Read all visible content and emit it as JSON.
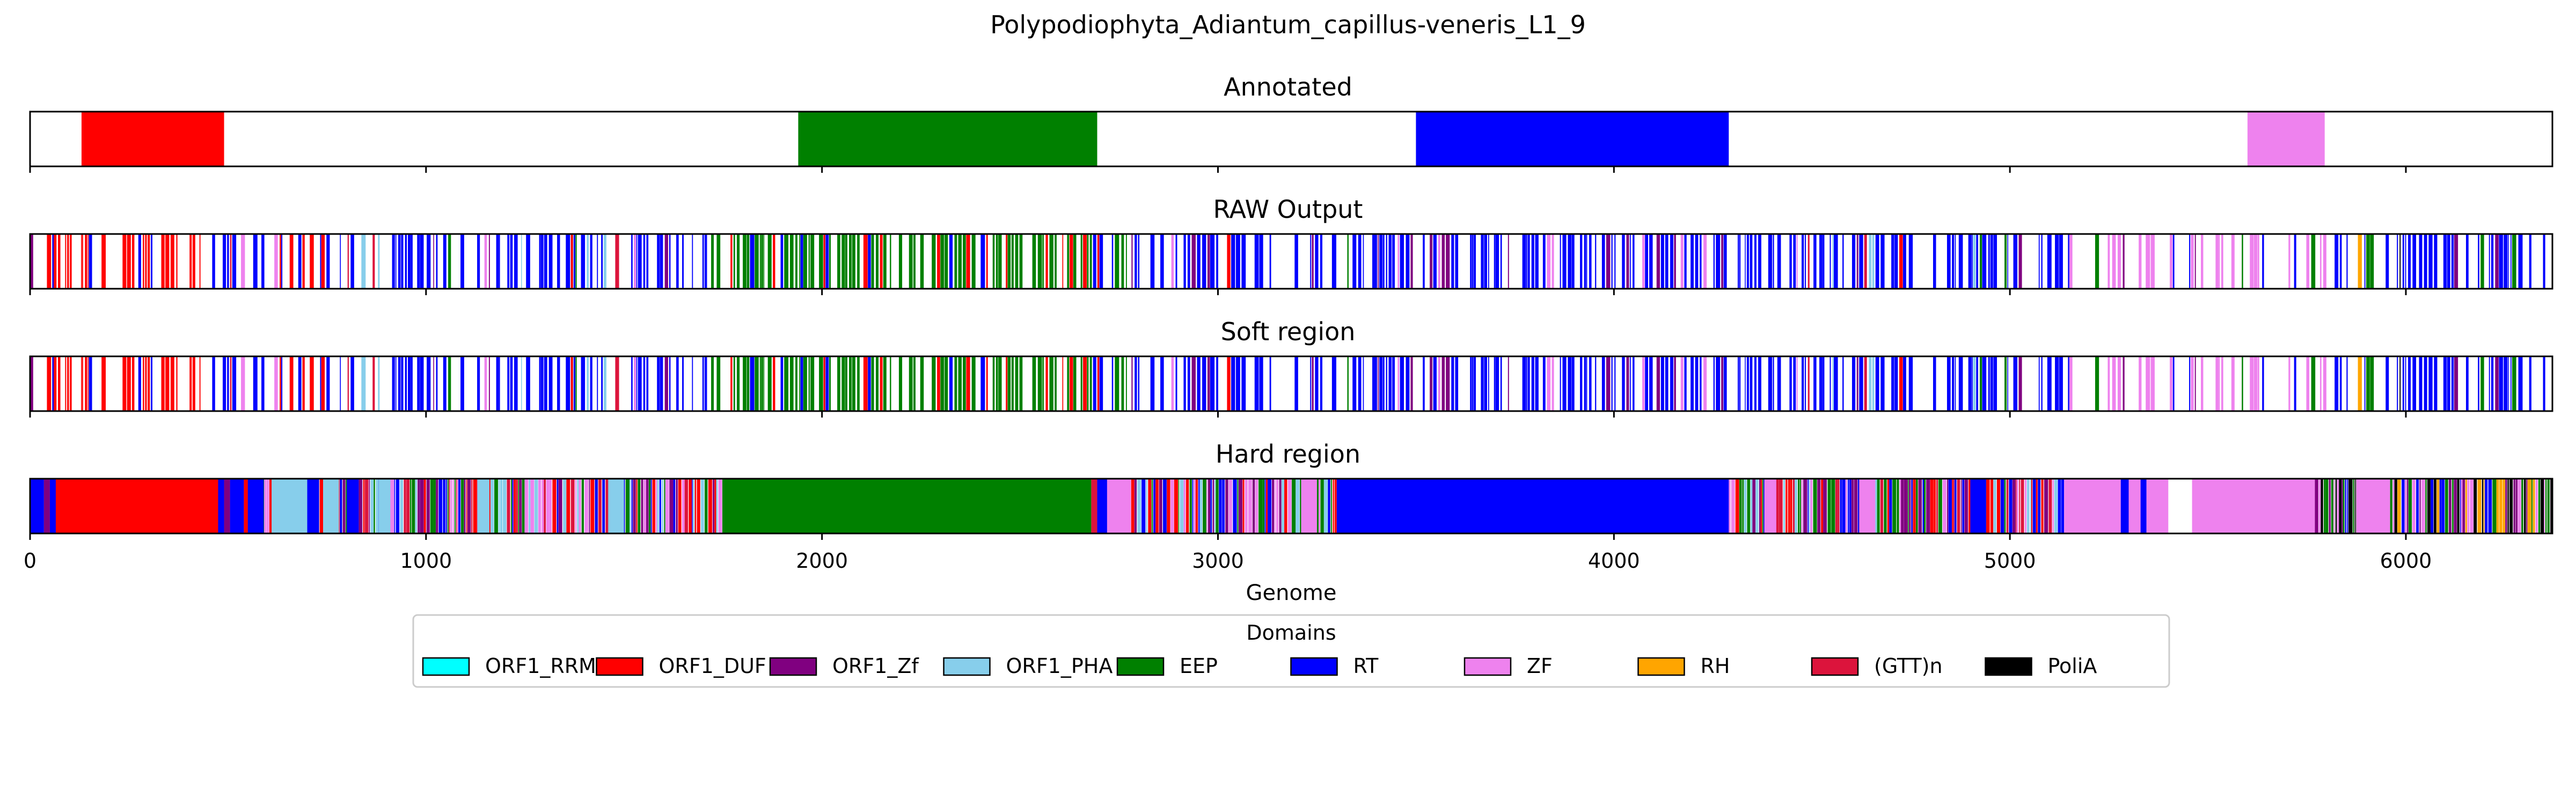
{
  "chart_data": {
    "type": "bar",
    "title": "Polypodiophyta_Adiantum_capillus-veneris_L1_9",
    "xlabel": "Genome",
    "xlim": [
      0,
      6370
    ],
    "xticks": [
      0,
      1000,
      2000,
      3000,
      4000,
      5000,
      6000
    ],
    "legend": {
      "title": "Domains",
      "placement": "bottom-center",
      "entries": [
        {
          "name": "ORF1_RRM",
          "color": "#00ffff"
        },
        {
          "name": "ORF1_DUF",
          "color": "#ff0000"
        },
        {
          "name": "ORF1_Zf",
          "color": "#800080"
        },
        {
          "name": "ORF1_PHA",
          "color": "#87ceeb"
        },
        {
          "name": "EEP",
          "color": "#008000"
        },
        {
          "name": "RT",
          "color": "#0000ff"
        },
        {
          "name": "ZF",
          "color": "#ee82ee"
        },
        {
          "name": "RH",
          "color": "#ffa500"
        },
        {
          "name": "(GTT)n",
          "color": "#dc143c"
        },
        {
          "name": "PoliA",
          "color": "#000000"
        }
      ]
    },
    "panels": [
      {
        "title": "Annotated",
        "segments": [
          {
            "domain": "ORF1_DUF",
            "start": 130,
            "end": 490
          },
          {
            "domain": "EEP",
            "start": 1940,
            "end": 2695
          },
          {
            "domain": "RT",
            "start": 3500,
            "end": 4290
          },
          {
            "domain": "ZF",
            "start": 5600,
            "end": 5795
          }
        ]
      },
      {
        "title": "RAW Output",
        "style": "stripes",
        "regions": [
          {
            "start": 0,
            "end": 60,
            "dominant": "RT",
            "others": [
              "ORF1_Zf",
              "ORF1_DUF"
            ],
            "fill": 0.6
          },
          {
            "start": 60,
            "end": 460,
            "dominant": "ORF1_DUF",
            "others": [
              "RT",
              "ORF1_Zf"
            ],
            "fill": 0.55
          },
          {
            "start": 460,
            "end": 1720,
            "dominant": "RT",
            "others": [
              "ORF1_Zf",
              "ORF1_PHA",
              "ORF1_DUF",
              "EEP",
              "ZF",
              "(GTT)n"
            ],
            "fill": 0.6
          },
          {
            "start": 1720,
            "end": 2770,
            "dominant": "EEP",
            "others": [
              "RT",
              "ORF1_DUF"
            ],
            "fill": 0.7
          },
          {
            "start": 2770,
            "end": 3330,
            "dominant": "RT",
            "others": [
              "ZF",
              "EEP",
              "ORF1_Zf",
              "ORF1_DUF"
            ],
            "fill": 0.6
          },
          {
            "start": 3330,
            "end": 4280,
            "dominant": "RT",
            "others": [
              "ORF1_Zf",
              "ZF"
            ],
            "fill": 0.65
          },
          {
            "start": 4280,
            "end": 5150,
            "dominant": "RT",
            "others": [
              "ZF",
              "EEP",
              "ORF1_Zf",
              "ORF1_DUF",
              "(GTT)n",
              "ORF1_PHA"
            ],
            "fill": 0.6
          },
          {
            "start": 5150,
            "end": 5820,
            "dominant": "ZF",
            "others": [
              "RT",
              "ORF1_Zf",
              "EEP"
            ],
            "fill": 0.5
          },
          {
            "start": 5820,
            "end": 6370,
            "dominant": "RT",
            "others": [
              "ZF",
              "EEP",
              "ORF1_Zf",
              "RH",
              "PoliA"
            ],
            "fill": 0.65
          }
        ]
      },
      {
        "title": "Soft region",
        "style": "stripes",
        "regions": [
          {
            "start": 0,
            "end": 60,
            "dominant": "RT",
            "others": [
              "ORF1_Zf",
              "ORF1_DUF"
            ],
            "fill": 0.6
          },
          {
            "start": 60,
            "end": 460,
            "dominant": "ORF1_DUF",
            "others": [
              "RT",
              "ORF1_Zf"
            ],
            "fill": 0.55
          },
          {
            "start": 460,
            "end": 1720,
            "dominant": "RT",
            "others": [
              "ORF1_Zf",
              "ORF1_PHA",
              "ORF1_DUF",
              "EEP",
              "ZF",
              "(GTT)n"
            ],
            "fill": 0.6
          },
          {
            "start": 1720,
            "end": 2770,
            "dominant": "EEP",
            "others": [
              "RT",
              "ORF1_DUF"
            ],
            "fill": 0.7
          },
          {
            "start": 2770,
            "end": 3330,
            "dominant": "RT",
            "others": [
              "ZF",
              "EEP",
              "ORF1_Zf",
              "ORF1_DUF"
            ],
            "fill": 0.6
          },
          {
            "start": 3330,
            "end": 4280,
            "dominant": "RT",
            "others": [
              "ORF1_Zf",
              "ZF"
            ],
            "fill": 0.65
          },
          {
            "start": 4280,
            "end": 5150,
            "dominant": "RT",
            "others": [
              "ZF",
              "EEP",
              "ORF1_Zf",
              "ORF1_DUF",
              "(GTT)n",
              "ORF1_PHA"
            ],
            "fill": 0.6
          },
          {
            "start": 5150,
            "end": 5820,
            "dominant": "ZF",
            "others": [
              "RT",
              "ORF1_Zf",
              "EEP"
            ],
            "fill": 0.5
          },
          {
            "start": 5820,
            "end": 6370,
            "dominant": "RT",
            "others": [
              "ZF",
              "EEP",
              "ORF1_Zf",
              "RH",
              "PoliA"
            ],
            "fill": 0.65
          }
        ]
      },
      {
        "title": "Hard region",
        "style": "blocks",
        "segments": [
          {
            "domain": "RT",
            "start": 0,
            "end": 35
          },
          {
            "domain": "ORF1_Zf",
            "start": 35,
            "end": 50
          },
          {
            "domain": "RT",
            "start": 50,
            "end": 65
          },
          {
            "domain": "ORF1_DUF",
            "start": 65,
            "end": 475
          },
          {
            "domain": "RT",
            "start": 475,
            "end": 490
          },
          {
            "domain": "ORF1_Zf",
            "start": 490,
            "end": 505
          },
          {
            "domain": "RT",
            "start": 505,
            "end": 540
          },
          {
            "domain": "ORF1_DUF",
            "start": 540,
            "end": 550
          },
          {
            "domain": "RT",
            "start": 550,
            "end": 590
          },
          {
            "domain": "ORF1_PHA",
            "start": 610,
            "end": 700
          },
          {
            "domain": "RT",
            "start": 700,
            "end": 730
          },
          {
            "domain": "ORF1_PHA",
            "start": 740,
            "end": 780
          },
          {
            "domain": "RT",
            "start": 800,
            "end": 830
          },
          {
            "domain": "ORF1_PHA",
            "start": 880,
            "end": 910
          },
          {
            "domain": "ORF1_PHA",
            "start": 1130,
            "end": 1160
          },
          {
            "domain": "ORF1_PHA",
            "start": 1460,
            "end": 1500
          },
          {
            "domain": "EEP",
            "start": 1750,
            "end": 2680
          },
          {
            "domain": "(GTT)n",
            "start": 2680,
            "end": 2695
          },
          {
            "domain": "RT",
            "start": 2695,
            "end": 2720
          },
          {
            "domain": "ZF",
            "start": 2720,
            "end": 2780
          },
          {
            "domain": "ZF",
            "start": 3210,
            "end": 3250
          },
          {
            "domain": "RT",
            "start": 3300,
            "end": 4290
          },
          {
            "domain": "ZF",
            "start": 4380,
            "end": 4410
          },
          {
            "domain": "ZF",
            "start": 4620,
            "end": 4660
          },
          {
            "domain": "RT",
            "start": 4900,
            "end": 4940
          },
          {
            "domain": "ZF",
            "start": 5140,
            "end": 5280
          },
          {
            "domain": "RT",
            "start": 5280,
            "end": 5300
          },
          {
            "domain": "ZF",
            "start": 5300,
            "end": 5330
          },
          {
            "domain": "RT",
            "start": 5330,
            "end": 5345
          },
          {
            "domain": "ZF",
            "start": 5345,
            "end": 5400
          },
          {
            "domain": "ZF",
            "start": 5460,
            "end": 5770
          },
          {
            "domain": "ZF",
            "start": 5875,
            "end": 5960
          }
        ],
        "noise_regions": [
          {
            "start": 0,
            "end": 1750,
            "colors": [
              "RT",
              "ORF1_Zf",
              "ORF1_PHA",
              "EEP",
              "ZF",
              "ORF1_DUF",
              "(GTT)n"
            ]
          },
          {
            "start": 2700,
            "end": 3300,
            "colors": [
              "RT",
              "ZF",
              "EEP",
              "ORF1_Zf",
              "ORF1_DUF",
              "ORF1_PHA"
            ]
          },
          {
            "start": 4290,
            "end": 5140,
            "colors": [
              "RT",
              "ZF",
              "EEP",
              "ORF1_Zf",
              "ORF1_DUF",
              "(GTT)n",
              "ORF1_PHA"
            ]
          },
          {
            "start": 5770,
            "end": 6370,
            "colors": [
              "RT",
              "ZF",
              "EEP",
              "ORF1_Zf",
              "RH",
              "PoliA"
            ]
          }
        ]
      }
    ]
  }
}
